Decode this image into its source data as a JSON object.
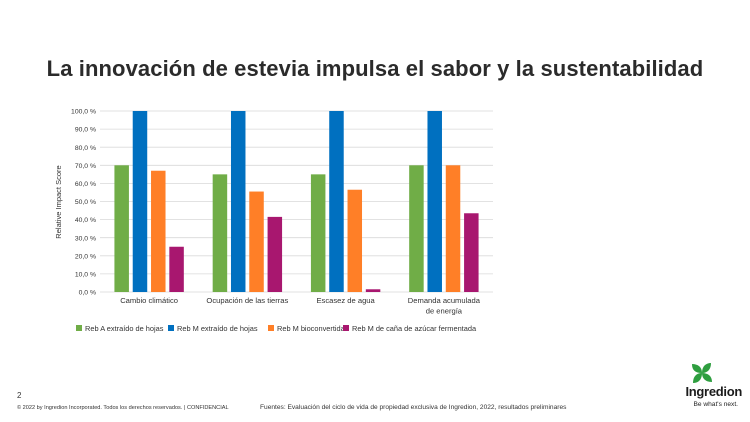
{
  "slide": {
    "title": "La innovación de estevia impulsa el sabor y la sustentabilidad",
    "slide_number": "2",
    "copyright": "© 2022 by Ingredion Incorporated. Todos los derechos reservados.  |  CONFIDENCIAL",
    "source": "Fuentes: Evaluación del ciclo de vida de propiedad exclusiva de Ingredion, 2022, resultados preliminares",
    "logo_name": "Ingredion",
    "logo_tagline": "Be what's next."
  },
  "colors": {
    "series": [
      "#70ad47",
      "#0070c0",
      "#ff7f27",
      "#a8176f"
    ],
    "grid": "#d9d9d9",
    "axis_text": "#333333",
    "logo_green": "#2e9e3f"
  },
  "chart_data": {
    "type": "bar",
    "title": "",
    "xlabel": "",
    "ylabel": "Relative Impact Score",
    "ylim": [
      0,
      100
    ],
    "yticks": [
      0,
      10,
      20,
      30,
      40,
      50,
      60,
      70,
      80,
      90,
      100
    ],
    "ytick_labels": [
      "0,0 %",
      "10,0 %",
      "20,0 %",
      "30,0 %",
      "40,0 %",
      "50,0 %",
      "60,0 %",
      "70,0 %",
      "80,0 %",
      "90,0 %",
      "100,0 %"
    ],
    "categories": [
      [
        "Cambio climático"
      ],
      [
        "Ocupación de las tierras"
      ],
      [
        "Escasez de agua"
      ],
      [
        "Demanda acumulada",
        "de energía"
      ]
    ],
    "series": [
      {
        "name": "Reb A extraído de hojas",
        "values": [
          70,
          65,
          65,
          70
        ]
      },
      {
        "name": "Reb M extraído de hojas",
        "values": [
          100,
          100,
          100,
          100
        ]
      },
      {
        "name": "Reb M bioconvertida",
        "values": [
          67,
          55.5,
          56.5,
          70
        ]
      },
      {
        "name": "Reb M de caña de azúcar fermentada",
        "values": [
          25,
          41.5,
          1.5,
          43.5
        ]
      }
    ],
    "grid": true,
    "legend_position": "bottom"
  }
}
